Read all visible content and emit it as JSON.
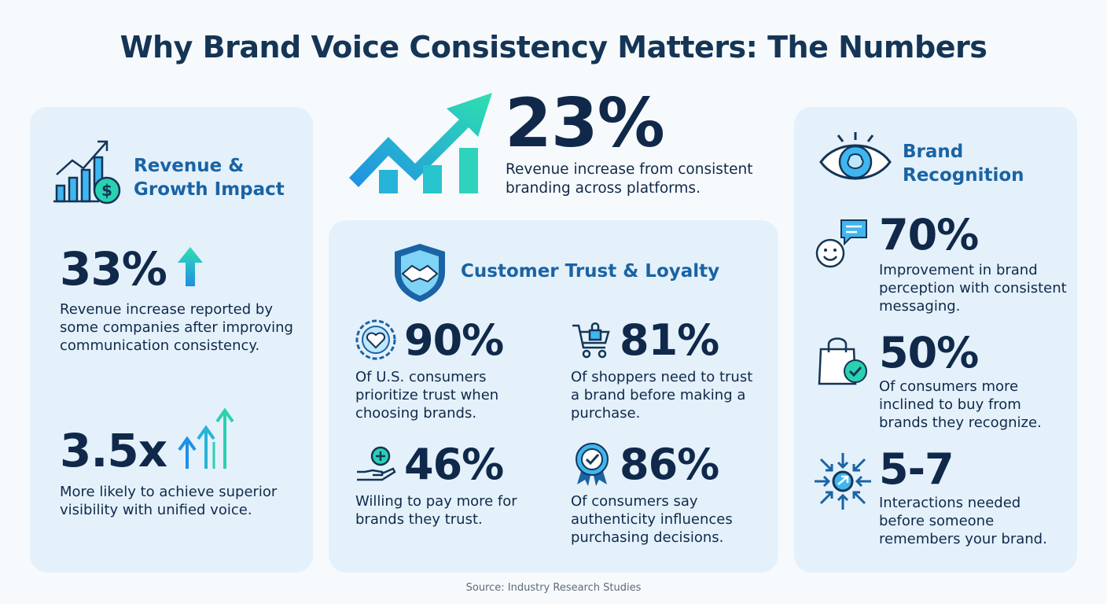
{
  "title": "Why Brand Voice Consistency Matters: The Numbers",
  "hero": {
    "value": "23%",
    "description": "Revenue increase from consistent branding across platforms.",
    "icon": "trend-arrow-icon"
  },
  "revenue": {
    "heading": "Revenue & Growth Impact",
    "icon": "bar-chart-dollar-icon",
    "stats": [
      {
        "value": "33%",
        "description": "Revenue increase reported by some companies after improving communication consistency.",
        "icon": "arrow-up-icon"
      },
      {
        "value": "3.5x",
        "description": "More likely to achieve superior visibility with unified voice.",
        "icon": "rising-arrows-icon"
      }
    ]
  },
  "trust": {
    "heading": "Customer Trust & Loyalty",
    "icon": "handshake-shield-icon",
    "stats": [
      {
        "value": "90%",
        "description": "Of U.S. consumers prioritize trust when choosing brands.",
        "icon": "heart-badge-icon"
      },
      {
        "value": "81%",
        "description": "Of shoppers need to trust a brand before making a purchase.",
        "icon": "cart-lock-icon"
      },
      {
        "value": "46%",
        "description": "Willing to pay more for brands they trust.",
        "icon": "hand-plus-icon"
      },
      {
        "value": "86%",
        "description": "Of consumers say authenticity influences purchasing decisions.",
        "icon": "check-ribbon-icon"
      }
    ]
  },
  "recognition": {
    "heading": "Brand Recognition",
    "icon": "eye-brain-icon",
    "stats": [
      {
        "value": "70%",
        "description": "Improvement in brand perception with consistent messaging.",
        "icon": "smile-chat-icon"
      },
      {
        "value": "50%",
        "description": "Of consumers more inclined to buy from brands they recognize.",
        "icon": "bag-check-icon"
      },
      {
        "value": "5-7",
        "description": "Interactions needed before someone remembers your brand.",
        "icon": "focus-arrows-icon"
      }
    ]
  },
  "source": "Source: Industry Research Studies",
  "colors": {
    "navy": "#10294a",
    "accent_blue": "#1a63a4",
    "teal": "#2ad1b0",
    "panel": "#e4f1fb"
  }
}
